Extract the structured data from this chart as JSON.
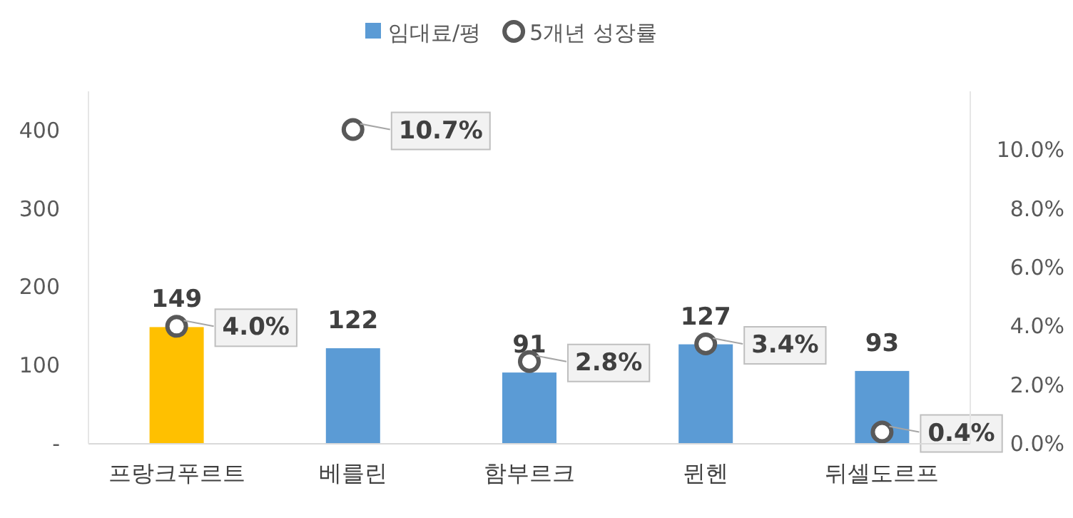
{
  "chart_data": {
    "type": "bar",
    "categories": [
      "프랑크푸르트",
      "베를린",
      "함부르크",
      "뮌헨",
      "뒤셀도르프"
    ],
    "series": [
      {
        "name": "임대료/평",
        "colors": [
          "#ffc000",
          "#5b9bd5",
          "#5b9bd5",
          "#5b9bd5",
          "#5b9bd5"
        ],
        "values": [
          149,
          122,
          91,
          127,
          93
        ]
      },
      {
        "name": "5개년 성장률",
        "type": "scatter",
        "axis": "y2",
        "color": "#595959",
        "marker": "circle",
        "values": [
          4.0,
          10.7,
          2.8,
          3.4,
          0.4
        ],
        "value_labels": [
          "4.0%",
          "10.7%",
          "2.8%",
          "3.4%",
          "0.4%"
        ]
      }
    ],
    "data_labels": true,
    "ylim": [
      0,
      450
    ],
    "yticks": [
      {
        "value": 0,
        "label": "-"
      },
      100,
      200,
      300,
      400
    ],
    "y2lim": [
      0,
      12
    ],
    "y2ticks": [
      {
        "value": 0,
        "label": "0.0%"
      },
      {
        "value": 2,
        "label": "2.0%"
      },
      {
        "value": 4,
        "label": "4.0%"
      },
      {
        "value": 6,
        "label": "6.0%"
      },
      {
        "value": 8,
        "label": "8.0%"
      },
      {
        "value": 10,
        "label": "10.0%"
      }
    ],
    "legend": "top",
    "grid": false
  }
}
